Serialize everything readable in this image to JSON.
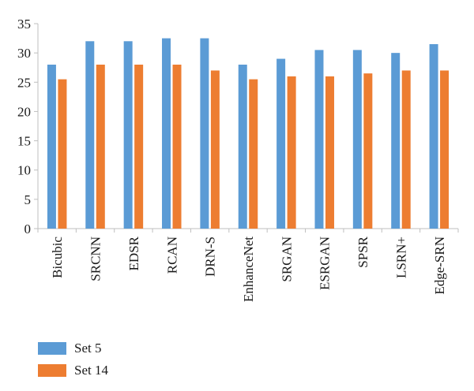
{
  "chart_data": {
    "type": "bar",
    "title": "",
    "xlabel": "",
    "ylabel": "",
    "ylim": [
      0,
      35
    ],
    "yticks": [
      0,
      5,
      10,
      15,
      20,
      25,
      30,
      35
    ],
    "grid": false,
    "legend_position": "bottom-left",
    "categories": [
      "Bicubic",
      "SRCNN",
      "EDSR",
      "RCAN",
      "DRN-S",
      "EnhanceNet",
      "SRGAN",
      "ESRGAN",
      "SPSR",
      "LSRN+",
      "Edge-SRN"
    ],
    "series": [
      {
        "name": "Set 5",
        "color": "#5b9bd5",
        "values": [
          28,
          32,
          32,
          32.5,
          32.5,
          28,
          29,
          30.5,
          30.5,
          30,
          31.5
        ]
      },
      {
        "name": "Set 14",
        "color": "#ed7d31",
        "values": [
          25.5,
          28,
          28,
          28,
          27,
          25.5,
          26,
          26,
          26.5,
          27,
          27
        ]
      }
    ]
  }
}
